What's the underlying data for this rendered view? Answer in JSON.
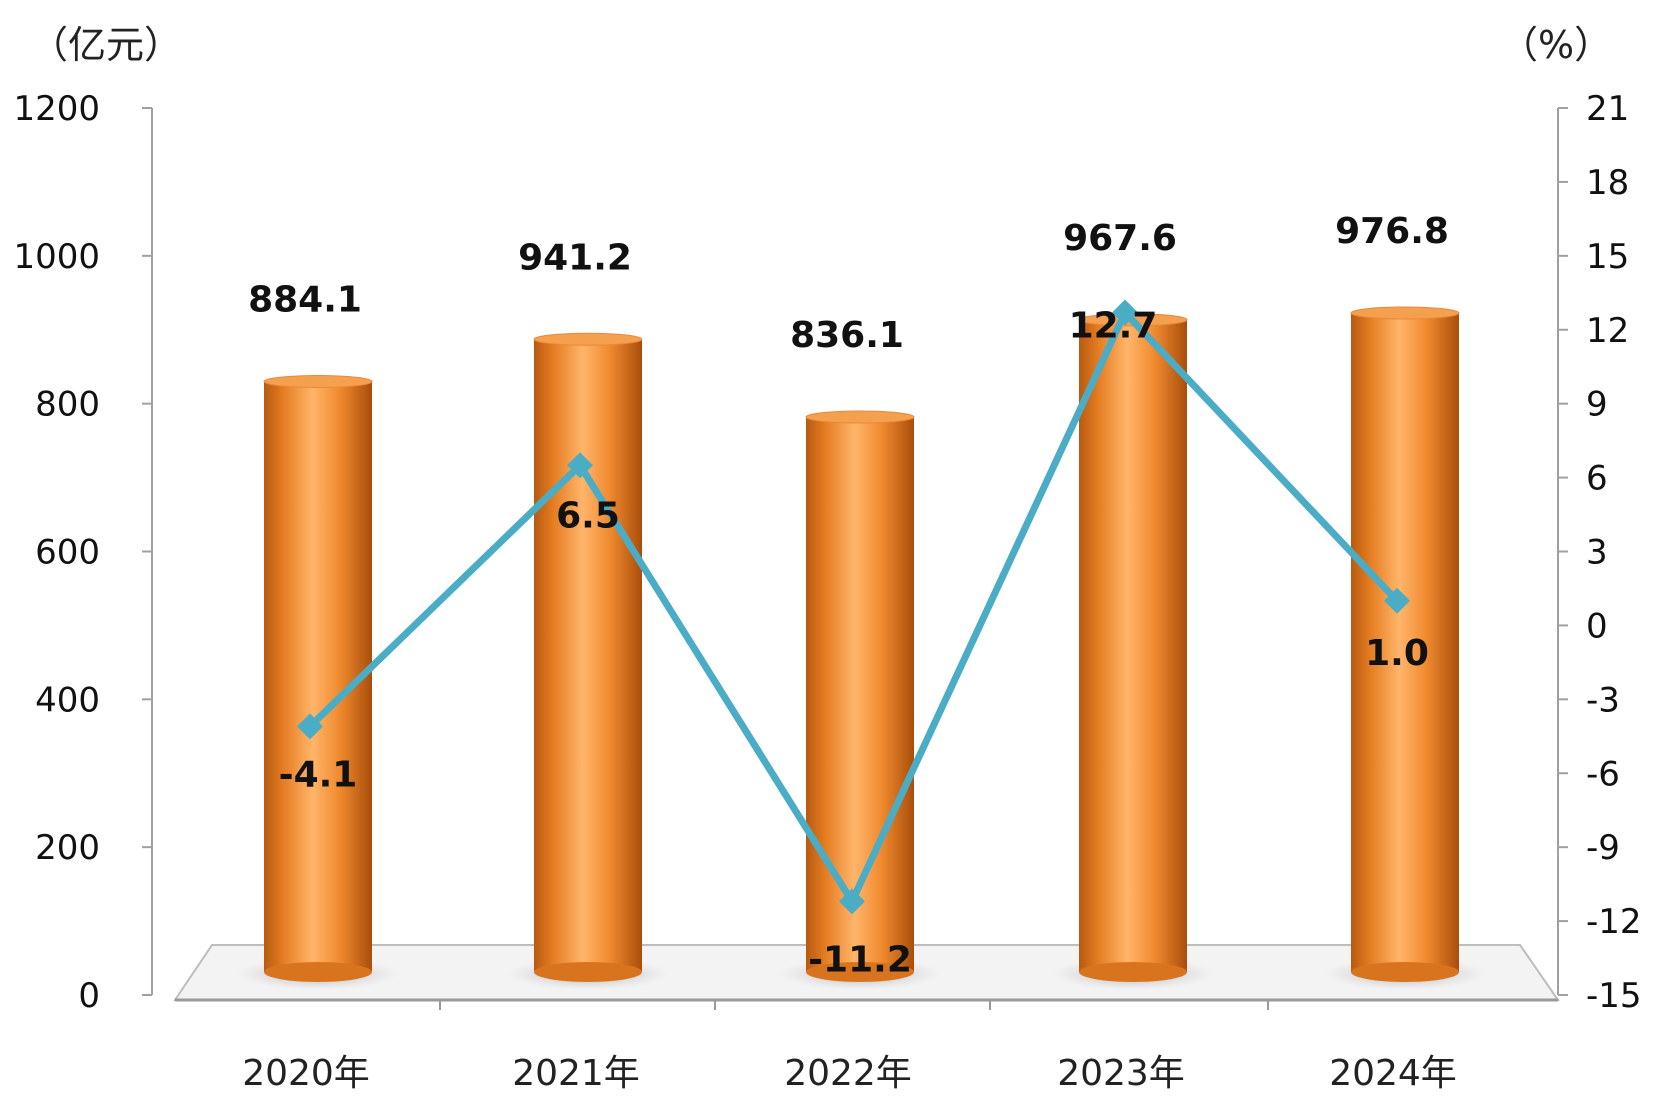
{
  "chart_data": {
    "type": "bar",
    "title": "",
    "categories": [
      "2020年",
      "2021年",
      "2022年",
      "2023年",
      "2024年"
    ],
    "left_axis": {
      "unit_label": "（亿元）",
      "ylim": [
        0,
        1200
      ],
      "ticks": [
        0,
        200,
        400,
        600,
        800,
        1000,
        1200
      ]
    },
    "right_axis": {
      "unit_label": "（%）",
      "ylim": [
        -15,
        21
      ],
      "ticks": [
        -15,
        -12,
        -9,
        -6,
        -3,
        0,
        3,
        6,
        9,
        12,
        15,
        18,
        21
      ]
    },
    "series": [
      {
        "type": "bar",
        "axis": "left",
        "values": [
          884.1,
          941.2,
          836.1,
          967.6,
          976.8
        ],
        "value_labels": [
          "884.1",
          "941.2",
          "836.1",
          "967.6",
          "976.8"
        ],
        "color": "#F08A2E"
      },
      {
        "type": "line",
        "axis": "right",
        "values": [
          -4.1,
          6.5,
          -11.2,
          12.7,
          1.0
        ],
        "value_labels": [
          "-4.1",
          "6.5",
          "-11.2",
          "12.7",
          "1.0"
        ],
        "color": "#4BACC6"
      }
    ],
    "grid": false,
    "legend": "none"
  }
}
